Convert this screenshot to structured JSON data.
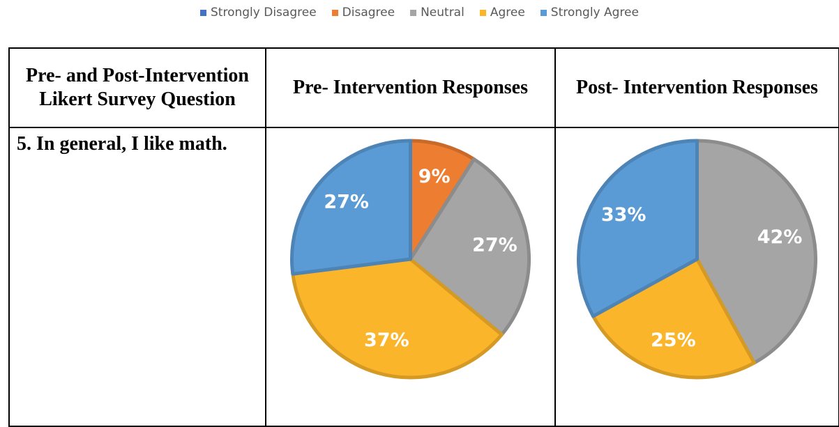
{
  "legend": {
    "items": [
      {
        "name": "Strongly Disagree",
        "color": "#4472c4"
      },
      {
        "name": "Disagree",
        "color": "#ed7d31"
      },
      {
        "name": "Neutral",
        "color": "#a5a5a5"
      },
      {
        "name": "Agree",
        "color": "#fbb52a"
      },
      {
        "name": "Strongly Agree",
        "color": "#5b9bd5"
      }
    ]
  },
  "table": {
    "headers": [
      "Pre- and Post-Intervention Likert Survey Question",
      "Pre- Intervention Responses",
      "Post- Intervention Responses"
    ],
    "rows": [
      [
        "5. In general, I like math."
      ]
    ]
  },
  "chart_data": [
    {
      "type": "pie",
      "values": [
        9,
        27,
        37,
        27
      ],
      "value_labels": [
        "9%",
        "27%",
        "37%",
        "27%"
      ],
      "colors": [
        "#ed7d31",
        "#a5a5a5",
        "#fbb52a",
        "#5b9bd5"
      ]
    },
    {
      "type": "pie",
      "values": [
        42,
        25,
        33
      ],
      "value_labels": [
        "42%",
        "25%",
        "33%"
      ],
      "colors": [
        "#a5a5a5",
        "#fbb52a",
        "#5b9bd5"
      ]
    }
  ]
}
